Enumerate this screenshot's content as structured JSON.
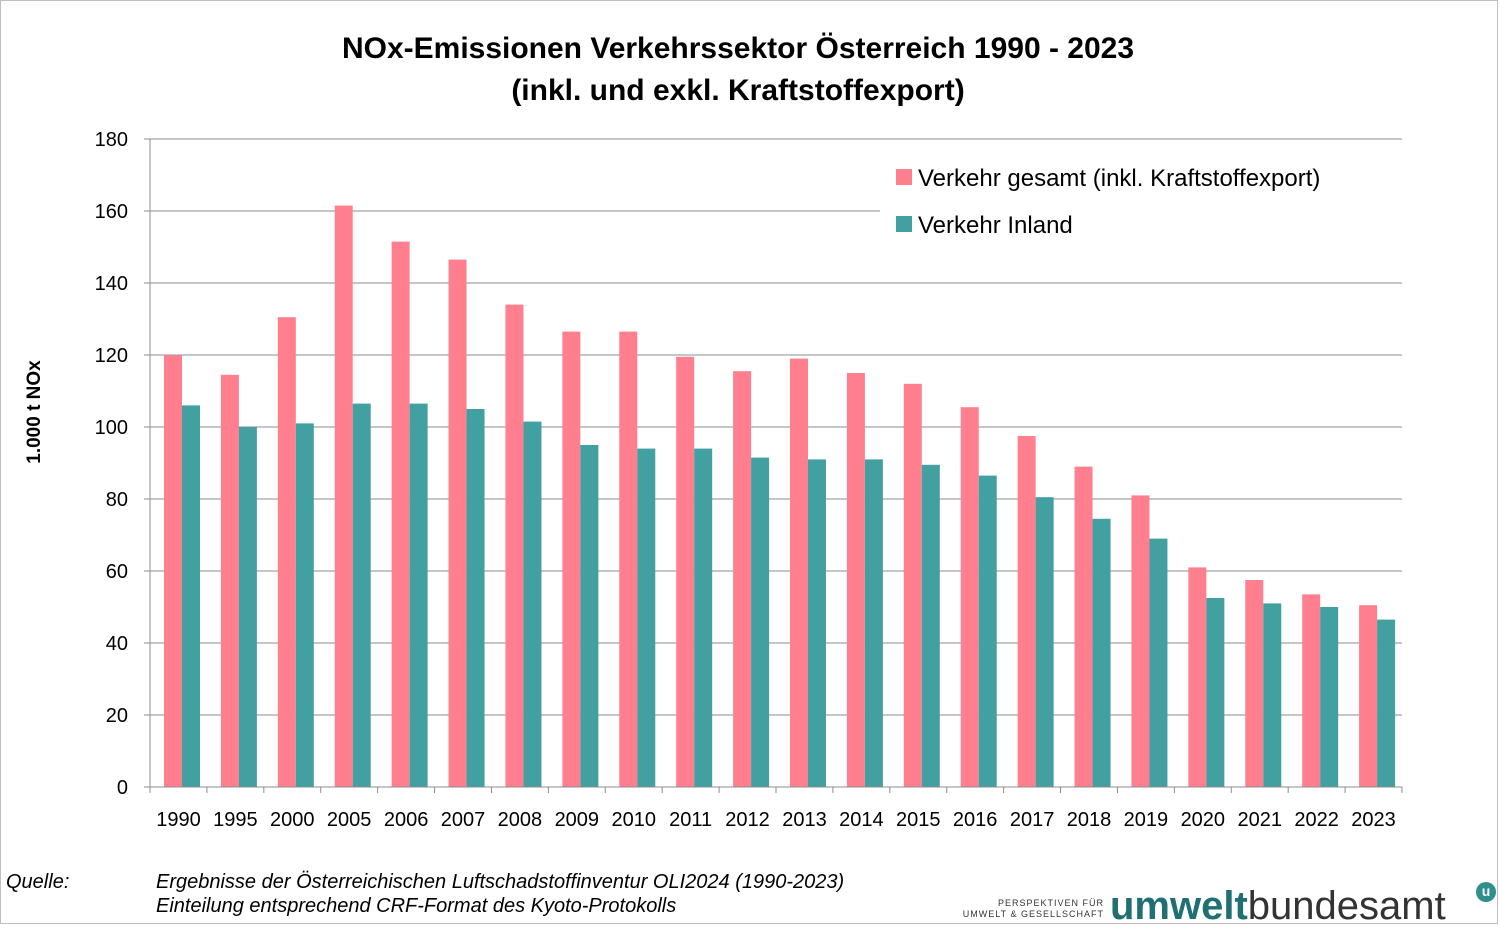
{
  "header": {
    "title_line1": "NOx-Emissionen Verkehrssektor Österreich 1990 - 2023",
    "title_line2": "(inkl. und exkl. Kraftstoffexport)"
  },
  "chart_data": {
    "type": "bar",
    "title": "NOx-Emissionen Verkehrssektor Österreich 1990 - 2023 (inkl. und exkl. Kraftstoffexport)",
    "xlabel": "",
    "ylabel": "1.000 t NOx",
    "ylim": [
      0,
      180
    ],
    "yticks": [
      0,
      20,
      40,
      60,
      80,
      100,
      120,
      140,
      160,
      180
    ],
    "grid": true,
    "legend_position": "top-right",
    "categories": [
      "1990",
      "1995",
      "2000",
      "2005",
      "2006",
      "2007",
      "2008",
      "2009",
      "2010",
      "2011",
      "2012",
      "2013",
      "2014",
      "2015",
      "2016",
      "2017",
      "2018",
      "2019",
      "2020",
      "2021",
      "2022",
      "2023"
    ],
    "series": [
      {
        "name": "Verkehr gesamt (inkl. Kraftstoffexport)",
        "color": "#ff7f8f",
        "values": [
          120,
          114.5,
          130.5,
          161.5,
          151.5,
          146.5,
          134,
          126.5,
          126.5,
          119.5,
          115.5,
          119,
          115,
          112,
          105.5,
          97.5,
          89,
          81,
          61,
          57.5,
          53.5,
          50.5
        ]
      },
      {
        "name": "Verkehr Inland",
        "color": "#42a0a0",
        "values": [
          106,
          100,
          101,
          106.5,
          106.5,
          105,
          101.5,
          95,
          94,
          94,
          91.5,
          91,
          91,
          89.5,
          86.5,
          80.5,
          74.5,
          69,
          52.5,
          51,
          50,
          46.5
        ]
      }
    ]
  },
  "footer": {
    "source_label": "Quelle:",
    "source_line1": "Ergebnisse der Österreichischen Luftschadstoffinventur OLI2024 (1990-2023)",
    "source_line2": "Einteilung entsprechend CRF-Format des Kyoto-Protokolls"
  },
  "logo": {
    "tagline1": "PERSPEKTIVEN FÜR",
    "tagline2": "UMWELT & GESELLSCHAFT",
    "word_part1": "umwelt",
    "word_part2": "bundesamt",
    "mark": "u"
  }
}
